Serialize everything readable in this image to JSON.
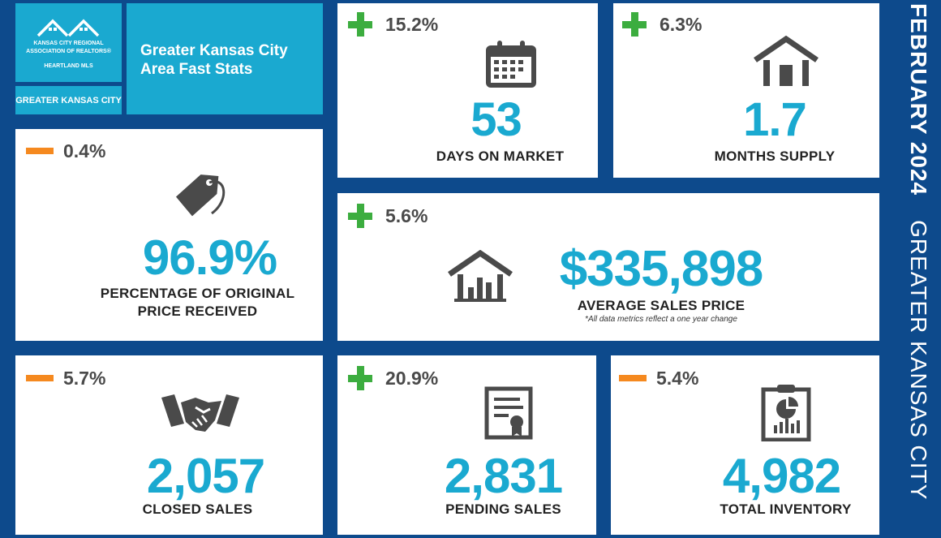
{
  "logo": {
    "line1": "KANSAS CITY REGIONAL",
    "line2": "ASSOCIATION OF REALTORS®",
    "line3": "HEARTLAND MLS",
    "region_badge": "GREATER KANSAS CITY"
  },
  "header": {
    "title_line1": "Greater Kansas City",
    "title_line2": "Area Fast Stats"
  },
  "side_banner": {
    "month": "FEBRUARY 2024",
    "region": "GREATER KANSAS CITY"
  },
  "colors": {
    "background": "#0d4a8c",
    "accent_teal": "#1aa9d0",
    "increase_green": "#3cad3f",
    "decrease_orange": "#f5891f",
    "icon_gray": "#4a4a4a"
  },
  "stats": {
    "days_on_market": {
      "direction": "up",
      "change": "15.2%",
      "value": "53",
      "label": "DAYS ON MARKET",
      "icon": "calendar-icon"
    },
    "months_supply": {
      "direction": "up",
      "change": "6.3%",
      "value": "1.7",
      "label": "MONTHS SUPPLY",
      "icon": "house-icon"
    },
    "pct_original_price": {
      "direction": "down",
      "change": "0.4%",
      "value": "96.9%",
      "label_line1": "PERCENTAGE OF ORIGINAL",
      "label_line2": "PRICE RECEIVED",
      "icon": "price-tag-icon"
    },
    "avg_sales_price": {
      "direction": "up",
      "change": "5.6%",
      "value": "$335,898",
      "label": "AVERAGE SALES PRICE",
      "footnote": "*All data metrics reflect a one year change",
      "icon": "house-chart-icon"
    },
    "closed_sales": {
      "direction": "down",
      "change": "5.7%",
      "value": "2,057",
      "label": "CLOSED SALES",
      "icon": "handshake-icon"
    },
    "pending_sales": {
      "direction": "up",
      "change": "20.9%",
      "value": "2,831",
      "label": "PENDING SALES",
      "icon": "certificate-icon"
    },
    "total_inventory": {
      "direction": "down",
      "change": "5.4%",
      "value": "4,982",
      "label": "TOTAL INVENTORY",
      "icon": "clipboard-chart-icon"
    }
  }
}
